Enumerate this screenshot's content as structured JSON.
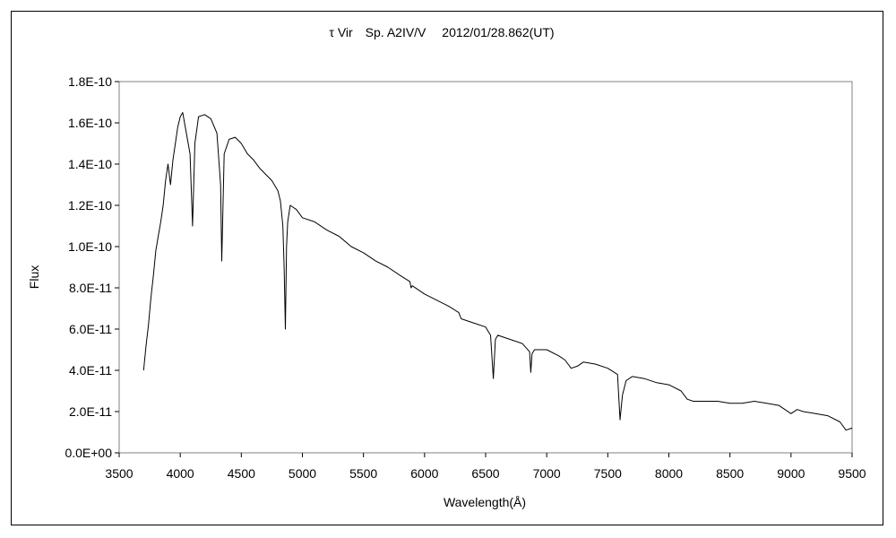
{
  "chart_data": {
    "type": "line",
    "title": "τ Vir　Sp. A2IV/V　 2012/01/28.862(UT)",
    "xlabel": "Wavelength(Å)",
    "ylabel": "Flux",
    "xlim": [
      3500,
      9500
    ],
    "ylim": [
      0,
      1.8e-10
    ],
    "x_ticks": [
      3500,
      4000,
      4500,
      5000,
      5500,
      6000,
      6500,
      7000,
      7500,
      8000,
      8500,
      9000,
      9500
    ],
    "x_tick_labels": [
      "3500",
      "4000",
      "4500",
      "5000",
      "5500",
      "6000",
      "6500",
      "7000",
      "7500",
      "8000",
      "8500",
      "9000",
      "9500"
    ],
    "y_ticks": [
      0,
      2e-11,
      4e-11,
      6e-11,
      8e-11,
      1e-10,
      1.2e-10,
      1.4e-10,
      1.6e-10,
      1.8e-10
    ],
    "y_tick_labels": [
      "0.0E+00",
      "2.0E-11",
      "4.0E-11",
      "6.0E-11",
      "8.0E-11",
      "1.0E-10",
      "1.2E-10",
      "1.4E-10",
      "1.6E-10",
      "1.8E-10"
    ],
    "grid": false,
    "legend": "none",
    "line_color": "#000000",
    "series": [
      {
        "x": [
          3700,
          3720,
          3740,
          3760,
          3780,
          3800,
          3820,
          3840,
          3860,
          3880,
          3900,
          3920,
          3940,
          3960,
          3980,
          4000,
          4020,
          4050,
          4080,
          4101,
          4120,
          4150,
          4200,
          4250,
          4300,
          4330,
          4340,
          4360,
          4400,
          4450,
          4500,
          4550,
          4600,
          4650,
          4700,
          4750,
          4800,
          4820,
          4840,
          4850,
          4861,
          4870,
          4880,
          4900,
          4950,
          5000,
          5100,
          5200,
          5300,
          5400,
          5500,
          5600,
          5700,
          5800,
          5880,
          5890,
          5900,
          6000,
          6100,
          6200,
          6280,
          6300,
          6400,
          6500,
          6540,
          6563,
          6580,
          6600,
          6700,
          6800,
          6860,
          6870,
          6880,
          6900,
          7000,
          7100,
          7150,
          7200,
          7250,
          7300,
          7400,
          7500,
          7580,
          7600,
          7620,
          7650,
          7700,
          7800,
          7900,
          8000,
          8100,
          8150,
          8200,
          8300,
          8400,
          8500,
          8600,
          8700,
          8800,
          8900,
          8950,
          9000,
          9050,
          9100,
          9200,
          9300,
          9400,
          9450,
          9500
        ],
        "y": [
          4e-11,
          5.2e-11,
          6.2e-11,
          7.5e-11,
          8.6e-11,
          9.8e-11,
          1.05e-10,
          1.12e-10,
          1.2e-10,
          1.32e-10,
          1.4e-10,
          1.3e-10,
          1.42e-10,
          1.5e-10,
          1.58e-10,
          1.63e-10,
          1.65e-10,
          1.55e-10,
          1.45e-10,
          1.1e-10,
          1.5e-10,
          1.63e-10,
          1.64e-10,
          1.62e-10,
          1.55e-10,
          1.3e-10,
          9.3e-11,
          1.45e-10,
          1.52e-10,
          1.53e-10,
          1.5e-10,
          1.45e-10,
          1.42e-10,
          1.38e-10,
          1.35e-10,
          1.32e-10,
          1.27e-10,
          1.22e-10,
          1.1e-10,
          9e-11,
          6e-11,
          1e-10,
          1.12e-10,
          1.2e-10,
          1.18e-10,
          1.14e-10,
          1.12e-10,
          1.08e-10,
          1.05e-10,
          1e-10,
          9.7e-11,
          9.3e-11,
          9e-11,
          8.6e-11,
          8.3e-11,
          8e-11,
          8.1e-11,
          7.7e-11,
          7.4e-11,
          7.1e-11,
          6.8e-11,
          6.5e-11,
          6.3e-11,
          6.1e-11,
          5.7e-11,
          3.6e-11,
          5.5e-11,
          5.7e-11,
          5.5e-11,
          5.3e-11,
          4.9e-11,
          3.9e-11,
          4.8e-11,
          5e-11,
          5e-11,
          4.7e-11,
          4.5e-11,
          4.1e-11,
          4.2e-11,
          4.4e-11,
          4.3e-11,
          4.1e-11,
          3.8e-11,
          1.6e-11,
          2.8e-11,
          3.5e-11,
          3.7e-11,
          3.6e-11,
          3.4e-11,
          3.3e-11,
          3e-11,
          2.6e-11,
          2.5e-11,
          2.5e-11,
          2.5e-11,
          2.4e-11,
          2.4e-11,
          2.5e-11,
          2.4e-11,
          2.3e-11,
          2.1e-11,
          1.9e-11,
          2.1e-11,
          2e-11,
          1.9e-11,
          1.8e-11,
          1.5e-11,
          1.1e-11,
          1.2e-11
        ]
      }
    ]
  }
}
